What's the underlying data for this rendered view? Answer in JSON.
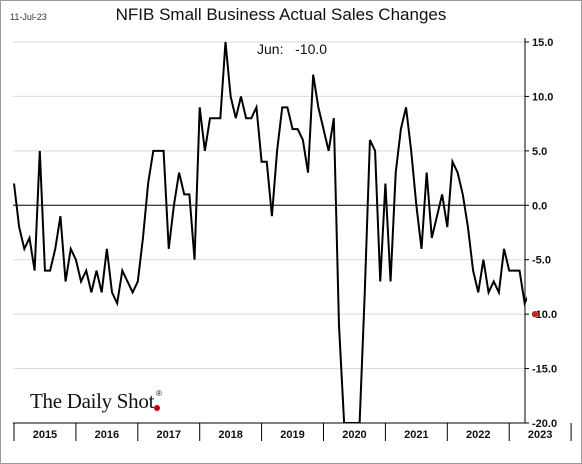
{
  "header": {
    "date": "11-Jul-23",
    "title": "NFIB Small Business Actual Sales Changes"
  },
  "annotation": {
    "label": "Jun:",
    "value": "-10.0"
  },
  "brand": {
    "name": "The Daily Shot",
    "mark": "®",
    "accent_color": "#c00000"
  },
  "chart_data": {
    "type": "line",
    "title": "NFIB Small Business Actual Sales Changes",
    "xlabel": "",
    "ylabel": "",
    "y_axis_position": "right",
    "ylim": [
      -20,
      15
    ],
    "y_ticks": [
      15.0,
      10.0,
      5.0,
      0.0,
      -5.0,
      -10.0,
      -15.0,
      -20.0
    ],
    "y_tick_labels": [
      "15.0",
      "10.0",
      "5.0",
      "0.0",
      "-5.0",
      "-10.0",
      "-15.0",
      "-20.0"
    ],
    "x_tick_labels": [
      "2015",
      "2016",
      "2017",
      "2018",
      "2019",
      "2020",
      "2021",
      "2022",
      "2023"
    ],
    "grid": "horizontal",
    "zero_line": true,
    "line_color": "#000000",
    "last_point_color": "#cc2222",
    "series": [
      {
        "x_start": "2015-01",
        "frequency": "monthly",
        "values": [
          2,
          -2,
          -4,
          -3,
          -6,
          5,
          -6,
          -6,
          -4,
          -1,
          -7,
          -4,
          -5,
          -7,
          -6,
          -8,
          -6,
          -8,
          -4,
          -8,
          -9,
          -6,
          -7,
          -8,
          -7,
          -3,
          2,
          5,
          5,
          5,
          -4,
          0,
          3,
          1,
          1,
          -5,
          9,
          5,
          8,
          8,
          8,
          15,
          10,
          8,
          10,
          8,
          8,
          9,
          4,
          4,
          -1,
          5,
          9,
          9,
          7,
          7,
          6,
          3,
          12,
          9,
          7,
          5,
          8,
          -11,
          -20,
          -20,
          -20,
          -20,
          -8,
          6,
          5,
          -7,
          2,
          -7,
          3,
          7,
          9,
          5,
          0,
          -4,
          3,
          -3,
          -1,
          1,
          -2,
          4,
          3,
          1,
          -2,
          -6,
          -8,
          -5,
          -8,
          -7,
          -8,
          -4,
          -6,
          -6,
          -6,
          -9,
          -8,
          -10
        ]
      }
    ]
  }
}
